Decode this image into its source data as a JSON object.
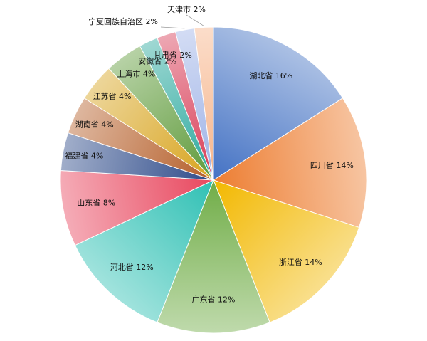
{
  "chart_data": {
    "type": "pie",
    "series": [
      {
        "name": "湖北省",
        "value": 16,
        "label": "湖北省 16%",
        "color": "#4472C4"
      },
      {
        "name": "四川省",
        "value": 14,
        "label": "四川省 14%",
        "color": "#ED7D31"
      },
      {
        "name": "浙江省",
        "value": 14,
        "label": "浙江省 14%",
        "color": "#F2B800"
      },
      {
        "name": "广东省",
        "value": 12,
        "label": "广东省 12%",
        "color": "#70AD47"
      },
      {
        "name": "河北省",
        "value": 12,
        "label": "河北省 12%",
        "color": "#2FC0B4"
      },
      {
        "name": "山东省",
        "value": 8,
        "label": "山东省 8%",
        "color": "#E8475E"
      },
      {
        "name": "福建省",
        "value": 4,
        "label": "福建省 4%",
        "color": "#2E4B8A"
      },
      {
        "name": "湖南省",
        "value": 4,
        "label": "湖南省 4%",
        "color": "#B55F2A"
      },
      {
        "name": "江苏省",
        "value": 4,
        "label": "江苏省 4%",
        "color": "#D8A41E"
      },
      {
        "name": "上海市",
        "value": 4,
        "label": "上海市 4%",
        "color": "#5E9A3A"
      },
      {
        "name": "安徽省",
        "value": 2,
        "label": "安徽省 2%",
        "color": "#2AA89E"
      },
      {
        "name": "甘肃省",
        "value": 2,
        "label": "甘肃省 2%",
        "color": "#D83B55"
      },
      {
        "name": "宁夏回族自治区",
        "value": 2,
        "label": "宁夏回族自治区 2%",
        "color": "#9DB2E6"
      },
      {
        "name": "天津市",
        "value": 2,
        "label": "天津市 2%",
        "color": "#F6B48A"
      }
    ]
  }
}
